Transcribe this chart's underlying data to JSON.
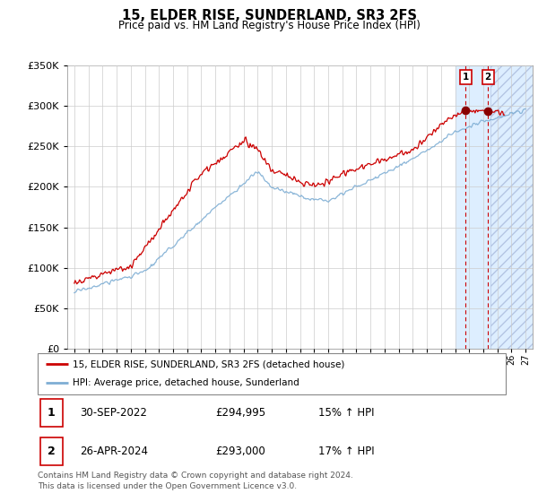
{
  "title": "15, ELDER RISE, SUNDERLAND, SR3 2FS",
  "subtitle": "Price paid vs. HM Land Registry's House Price Index (HPI)",
  "ylim": [
    0,
    350000
  ],
  "yticks": [
    0,
    50000,
    100000,
    150000,
    200000,
    250000,
    300000,
    350000
  ],
  "xlim": [
    1994.5,
    2027.5
  ],
  "xtick_years": [
    1995,
    1996,
    1997,
    1998,
    1999,
    2000,
    2001,
    2002,
    2003,
    2004,
    2005,
    2006,
    2007,
    2008,
    2009,
    2010,
    2011,
    2012,
    2013,
    2014,
    2015,
    2016,
    2017,
    2018,
    2019,
    2020,
    2021,
    2022,
    2023,
    2024,
    2025,
    2026,
    2027
  ],
  "legend_line1": "15, ELDER RISE, SUNDERLAND, SR3 2FS (detached house)",
  "legend_line2": "HPI: Average price, detached house, Sunderland",
  "table_rows": [
    {
      "num": "1",
      "date": "30-SEP-2022",
      "price": "£294,995",
      "hpi": "15% ↑ HPI"
    },
    {
      "num": "2",
      "date": "26-APR-2024",
      "price": "£293,000",
      "hpi": "17% ↑ HPI"
    }
  ],
  "footer": "Contains HM Land Registry data © Crown copyright and database right 2024.\nThis data is licensed under the Open Government Licence v3.0.",
  "line_color_red": "#cc0000",
  "line_color_blue": "#7eaed4",
  "vline_color": "#cc0000",
  "marker1_x": 2022.75,
  "marker2_x": 2024.33,
  "marker_y1": 294995,
  "marker_y2": 293000,
  "shade_start": 2022.0,
  "shade_end": 2027.5,
  "hatch_start": 2024.5,
  "hatch_end": 2027.5,
  "shade_color": "#ddeeff",
  "bg_color": "#ffffff"
}
